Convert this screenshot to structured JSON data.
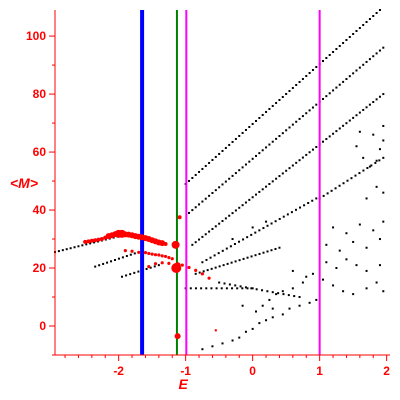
{
  "chart_data": {
    "type": "scatter",
    "title": "",
    "xlabel": "E",
    "ylabel": "<M>",
    "xlim": [
      -2.95,
      2.05
    ],
    "ylim": [
      -10,
      109
    ],
    "x_ticks": [
      -2,
      -1,
      0,
      1,
      2
    ],
    "x_tick_labels": [
      "-2",
      "-1",
      "0",
      "1",
      "2"
    ],
    "y_ticks": [
      0,
      20,
      40,
      60,
      80,
      100
    ],
    "y_tick_labels": [
      "0",
      "20",
      "40",
      "60",
      "80",
      "100"
    ],
    "grid": false,
    "legend": "none",
    "colors": {
      "axis": "#ff0000",
      "dots": "#000000",
      "highlight": "#ff0000",
      "line_blue": "#0000ff",
      "line_green": "#008000",
      "line_magenta": "#ff00ff"
    },
    "vertical_lines": [
      {
        "x": -1.65,
        "color": "#0000ff",
        "weight": "thick"
      },
      {
        "x": -1.13,
        "color": "#008000",
        "weight": "thin"
      },
      {
        "x": -0.99,
        "color": "#ff00ff",
        "weight": "thin"
      },
      {
        "x": 1.0,
        "color": "#ff00ff",
        "weight": "thin"
      }
    ],
    "series": [
      {
        "role": "black-dots",
        "color": "#000000",
        "bands": [
          {
            "x0": -2.95,
            "y0": 25.5,
            "x1": -1.9,
            "y1": 31.5,
            "step": 0.06
          },
          {
            "x0": -2.35,
            "y0": 20.5,
            "x1": -1.7,
            "y1": 25.5,
            "step": 0.06
          },
          {
            "x0": -1.95,
            "y0": 17.0,
            "x1": -1.4,
            "y1": 21.0,
            "step": 0.06
          },
          {
            "x0": -1.0,
            "y0": 49.0,
            "x1": 1.9,
            "y1": 109.0,
            "step": 0.05
          },
          {
            "x0": -0.95,
            "y0": 39.0,
            "x1": 1.95,
            "y1": 96.0,
            "step": 0.05
          },
          {
            "x0": -0.9,
            "y0": 28.0,
            "x1": 1.95,
            "y1": 80.0,
            "step": 0.05
          },
          {
            "x0": -0.75,
            "y0": 22.0,
            "x1": 0.95,
            "y1": 44.0,
            "step": 0.06
          },
          {
            "x0": 1.0,
            "y0": 44.0,
            "x1": 1.95,
            "y1": 58.0,
            "step": 0.06
          },
          {
            "x0": -0.85,
            "y0": 18.0,
            "x1": 0.4,
            "y1": 27.0,
            "step": 0.06
          },
          {
            "x0": -1.0,
            "y0": 13.0,
            "x1": 0.0,
            "y1": 13.0,
            "step": 0.08
          },
          {
            "x0": -0.5,
            "y0": 15.0,
            "x1": 0.7,
            "y1": 10.0,
            "step": 0.08
          }
        ],
        "points": [
          [
            -0.75,
            -8
          ],
          [
            -0.6,
            -7
          ],
          [
            -0.45,
            -6
          ],
          [
            -0.3,
            -5
          ],
          [
            -0.2,
            -4
          ],
          [
            -0.1,
            -2
          ],
          [
            0.0,
            -1
          ],
          [
            0.1,
            1
          ],
          [
            0.2,
            2
          ],
          [
            0.3,
            3
          ],
          [
            0.45,
            4
          ],
          [
            0.55,
            6
          ],
          [
            0.7,
            7
          ],
          [
            0.85,
            8
          ],
          [
            0.95,
            9
          ],
          [
            0.05,
            5
          ],
          [
            0.15,
            7
          ],
          [
            0.25,
            9
          ],
          [
            0.35,
            11
          ],
          [
            0.45,
            12
          ],
          [
            0.6,
            13
          ],
          [
            0.75,
            15
          ],
          [
            0.9,
            18
          ],
          [
            1.05,
            16
          ],
          [
            1.2,
            14
          ],
          [
            1.35,
            12
          ],
          [
            1.5,
            11
          ],
          [
            1.7,
            13
          ],
          [
            1.85,
            15
          ],
          [
            1.95,
            12
          ],
          [
            1.1,
            22
          ],
          [
            1.25,
            20
          ],
          [
            1.4,
            23
          ],
          [
            1.55,
            21
          ],
          [
            1.7,
            19
          ],
          [
            1.9,
            21
          ],
          [
            1.1,
            28
          ],
          [
            1.3,
            26
          ],
          [
            1.5,
            29
          ],
          [
            1.7,
            27
          ],
          [
            1.9,
            30
          ],
          [
            1.2,
            34
          ],
          [
            1.4,
            32
          ],
          [
            1.6,
            35
          ],
          [
            1.8,
            33
          ],
          [
            1.95,
            36
          ],
          [
            1.55,
            62
          ],
          [
            1.65,
            58
          ],
          [
            1.75,
            55
          ],
          [
            1.85,
            57
          ],
          [
            1.9,
            61
          ],
          [
            1.95,
            64
          ],
          [
            1.6,
            67
          ],
          [
            1.8,
            66
          ],
          [
            1.95,
            69
          ],
          [
            1.85,
            48
          ],
          [
            1.95,
            46
          ],
          [
            1.7,
            44
          ],
          [
            -0.15,
            7
          ],
          [
            0.3,
            6
          ],
          [
            0.6,
            19
          ],
          [
            0.8,
            17
          ],
          [
            -0.3,
            30
          ],
          [
            0.0,
            34
          ],
          [
            0.2,
            36
          ]
        ]
      },
      {
        "role": "red-markers",
        "color": "#ff0000",
        "points": [
          [
            -2.25,
            30.0,
            2
          ],
          [
            -2.2,
            30.5,
            2
          ],
          [
            -2.15,
            31.0,
            3
          ],
          [
            -2.1,
            31.3,
            3
          ],
          [
            -2.05,
            31.7,
            3
          ],
          [
            -2.0,
            31.8,
            4
          ],
          [
            -1.95,
            31.8,
            4
          ],
          [
            -1.9,
            31.6,
            3
          ],
          [
            -1.85,
            31.5,
            3
          ],
          [
            -1.8,
            31.3,
            3
          ],
          [
            -1.75,
            31.0,
            3
          ],
          [
            -1.7,
            30.8,
            3
          ],
          [
            -1.65,
            30.6,
            3
          ],
          [
            -1.6,
            30.3,
            3
          ],
          [
            -1.55,
            30.0,
            3
          ],
          [
            -1.5,
            29.6,
            3
          ],
          [
            -1.45,
            29.2,
            3
          ],
          [
            -1.4,
            28.8,
            3
          ],
          [
            -1.35,
            28.6,
            3
          ],
          [
            -1.3,
            28.3,
            2
          ],
          [
            -2.45,
            29.2,
            2
          ],
          [
            -2.5,
            29.0,
            2
          ],
          [
            -2.4,
            29.4,
            2
          ],
          [
            -2.35,
            29.6,
            2
          ],
          [
            -2.3,
            29.8,
            2
          ],
          [
            -1.15,
            28.0,
            4
          ],
          [
            -1.14,
            20.0,
            5
          ],
          [
            -1.12,
            21.0,
            3
          ],
          [
            -1.12,
            -3.5,
            3
          ],
          [
            -1.09,
            37.5,
            2
          ],
          [
            -1.9,
            26.0,
            1.6
          ],
          [
            -1.8,
            25.8,
            1.6
          ],
          [
            -1.7,
            25.4,
            1.6
          ],
          [
            -1.6,
            25.3,
            1.6
          ],
          [
            -1.55,
            25.0,
            1.6
          ],
          [
            -1.5,
            24.8,
            1.6
          ],
          [
            -1.45,
            24.6,
            1.6
          ],
          [
            -1.4,
            24.5,
            1.6
          ],
          [
            -1.35,
            24.2,
            1.6
          ],
          [
            -1.3,
            24.0,
            1.6
          ],
          [
            -1.25,
            23.6,
            1.6
          ],
          [
            -1.2,
            23.2,
            1.6
          ],
          [
            -1.55,
            20.5,
            1.6
          ],
          [
            -1.45,
            21.5,
            1.6
          ],
          [
            -1.35,
            21.8,
            1.6
          ],
          [
            -1.25,
            21.6,
            1.6
          ],
          [
            -1.05,
            21.0,
            1.6
          ],
          [
            -0.95,
            20.2,
            1.6
          ],
          [
            -0.85,
            19.2,
            1.6
          ],
          [
            -0.75,
            18.0,
            1.6
          ],
          [
            -0.65,
            16.5,
            1.6
          ],
          [
            -0.55,
            -1.5,
            1.2
          ]
        ]
      }
    ]
  }
}
